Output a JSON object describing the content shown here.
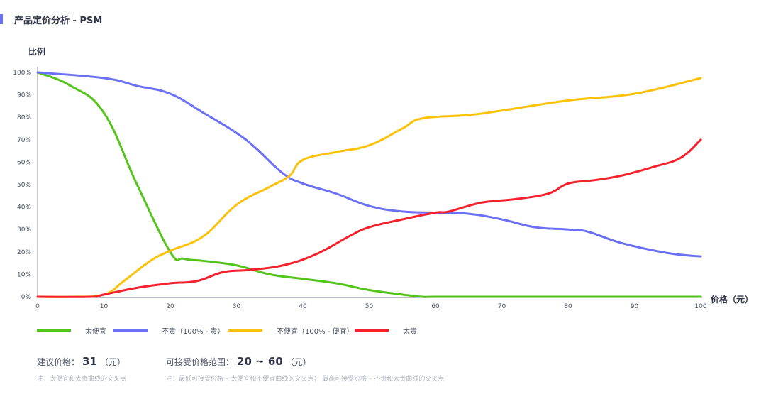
{
  "header": {
    "title": "产品定价分析 - PSM",
    "accent_color": "#6b70f5"
  },
  "axes": {
    "y_label": "比例",
    "x_label": "价格（元）",
    "y_ticks": [
      "0%",
      "10%",
      "20%",
      "30%",
      "40%",
      "50%",
      "60%",
      "70%",
      "80%",
      "90%",
      "100%"
    ],
    "x_ticks": [
      "0",
      "10",
      "20",
      "30",
      "40",
      "50",
      "60",
      "70",
      "80",
      "90",
      "100"
    ]
  },
  "legend": [
    {
      "label": "太便宜",
      "color": "#52c41a"
    },
    {
      "label": "不贵（100% - 贵）",
      "color": "#6b70f5"
    },
    {
      "label": "不便宜（100% - 便宜）",
      "color": "#fcc10a"
    },
    {
      "label": "太贵",
      "color": "#f5222d"
    }
  ],
  "summary": {
    "suggested_label": "建议价格：",
    "suggested_value": "31",
    "suggested_unit": "（元）",
    "suggested_note": "注：太便宜和太贵曲线的交叉点",
    "range_label": "可接受价格范围：",
    "range_value": "20 ~ 60",
    "range_unit": "（元）",
    "range_note": "注：最低可接受价格 – 太便宜和不便宜曲线的交叉点；  最高可接受价格 – 不贵和太贵曲线的交叉点"
  },
  "chart_data": {
    "type": "line",
    "title": "产品定价分析 - PSM",
    "xlabel": "价格（元）",
    "ylabel": "比例",
    "xlim": [
      0,
      100
    ],
    "ylim": [
      0,
      100
    ],
    "y_unit": "%",
    "grid": false,
    "legend_position": "bottom",
    "x_ticks": [
      0,
      10,
      20,
      30,
      40,
      50,
      60,
      70,
      80,
      90,
      100
    ],
    "y_ticks": [
      0,
      10,
      20,
      30,
      40,
      50,
      60,
      70,
      80,
      90,
      100
    ],
    "series": [
      {
        "name": "太便宜",
        "color": "#52c41a",
        "x": [
          0,
          5,
          10,
          15,
          20,
          22,
          25,
          30,
          35,
          40,
          45,
          50,
          55,
          58,
          60,
          70,
          80,
          90,
          100
        ],
        "values": [
          100,
          94,
          82,
          50,
          20,
          17,
          16,
          14,
          10,
          8,
          6,
          3,
          1,
          0,
          0,
          0,
          0,
          0,
          0
        ]
      },
      {
        "name": "不贵（100% - 贵）",
        "color": "#6b70f5",
        "x": [
          0,
          10,
          15,
          20,
          25,
          30,
          33,
          37,
          40,
          45,
          50,
          55,
          60,
          65,
          70,
          75,
          80,
          83,
          88,
          95,
          100
        ],
        "values": [
          100,
          97.5,
          94,
          90.5,
          82,
          73,
          66,
          55,
          50.5,
          46,
          40.5,
          38,
          37.5,
          37,
          34.5,
          31,
          30,
          29,
          24,
          19.5,
          18
        ]
      },
      {
        "name": "不便宜（100% - 便宜）",
        "color": "#fcc10a",
        "x": [
          0,
          5,
          10,
          13,
          17,
          20,
          25,
          30,
          35,
          38,
          40,
          45,
          50,
          55,
          58,
          65,
          70,
          80,
          90,
          100
        ],
        "values": [
          0,
          0,
          1,
          7,
          16,
          20.5,
          27,
          41,
          49,
          54,
          61,
          64.5,
          67.5,
          75,
          79.5,
          81,
          83,
          87.5,
          90.5,
          97.5
        ]
      },
      {
        "name": "太贵",
        "color": "#f5222d",
        "x": [
          0,
          8,
          10,
          15,
          20,
          24,
          28,
          32,
          37,
          42,
          47,
          50,
          55,
          60,
          62,
          67,
          72,
          77,
          80,
          84,
          88,
          93,
          97,
          100
        ],
        "values": [
          0,
          0,
          1,
          4,
          6,
          7,
          11,
          12,
          14,
          19,
          27,
          31,
          34.5,
          37.5,
          38,
          42,
          43.5,
          46,
          50.5,
          52,
          54,
          58,
          62,
          70
        ]
      }
    ],
    "annotations": {
      "suggested_price": 31,
      "acceptable_range": [
        20,
        60
      ]
    }
  }
}
